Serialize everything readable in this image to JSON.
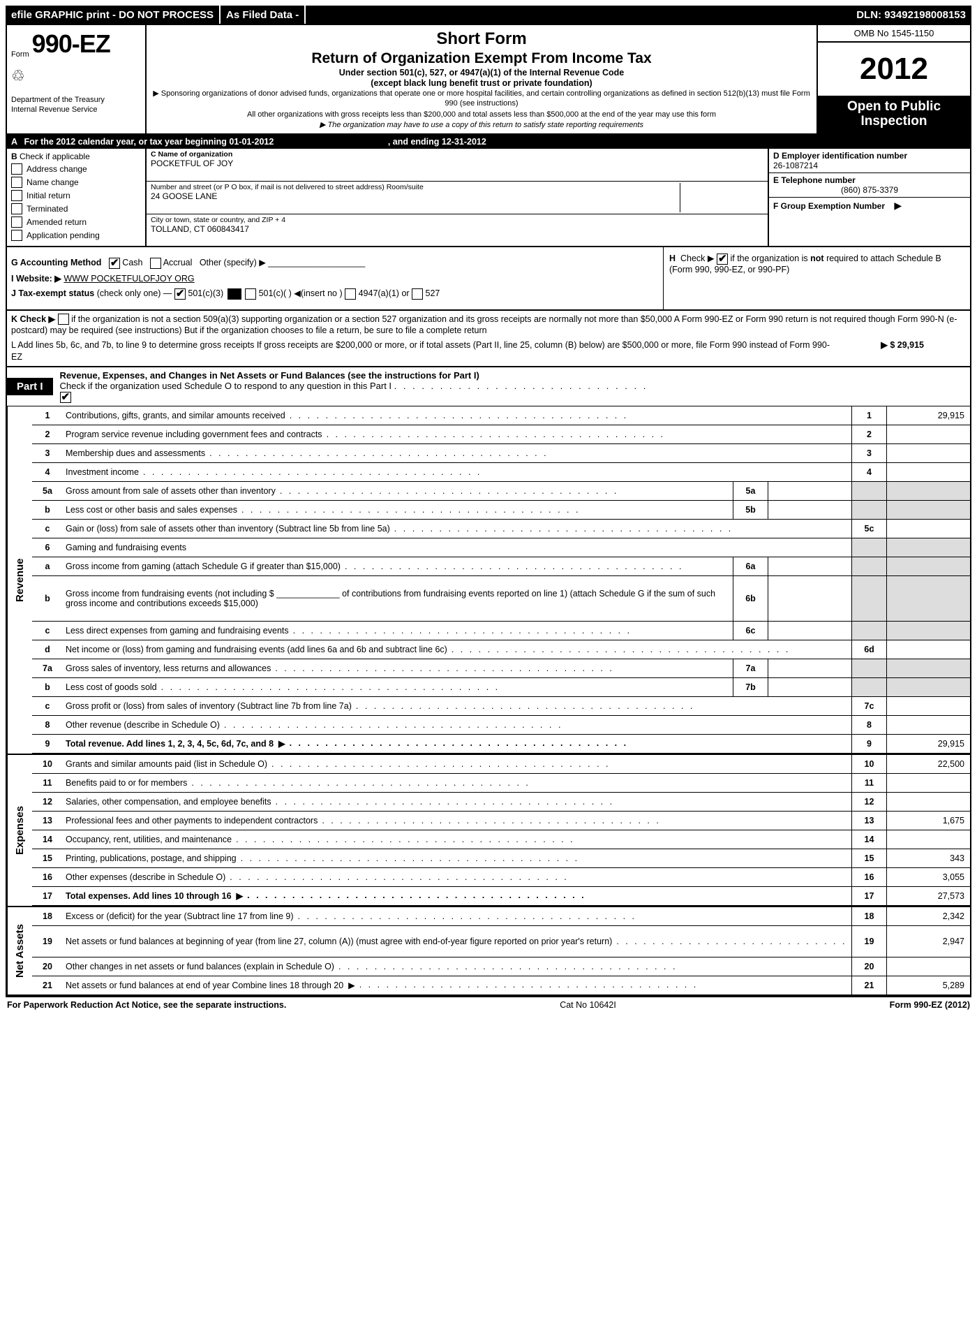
{
  "topbar": {
    "efile": "efile GRAPHIC print - DO NOT PROCESS",
    "asfiled": "As Filed Data -",
    "dln": "DLN: 93492198008153"
  },
  "header": {
    "form_prefix": "Form",
    "form_number": "990-EZ",
    "dept1": "Department of the Treasury",
    "dept2": "Internal Revenue Service",
    "short_form": "Short Form",
    "title": "Return of Organization Exempt From Income Tax",
    "sub1": "Under section 501(c), 527, or 4947(a)(1) of the Internal Revenue Code",
    "sub2": "(except black lung benefit trust or private foundation)",
    "sm1": "▶ Sponsoring organizations of donor advised funds, organizations that operate one or more hospital facilities, and certain controlling organizations as defined in section 512(b)(13) must file Form 990 (see instructions)",
    "sm2": "All other organizations with gross receipts less than $200,000 and total assets less than $500,000 at the end of the year may use this form",
    "sm3": "▶ The organization may have to use a copy of this return to satisfy state reporting requirements",
    "omb": "OMB No  1545-1150",
    "year": "2012",
    "open": "Open to Public Inspection"
  },
  "rowA": {
    "label": "A",
    "text": "For the 2012 calendar year, or tax year beginning 01-01-2012",
    "ending": ", and ending 12-31-2012"
  },
  "B": {
    "header": "Check if applicable",
    "items": [
      "Address change",
      "Name change",
      "Initial return",
      "Terminated",
      "Amended return",
      "Application pending"
    ]
  },
  "C": {
    "name_lbl": "C Name of organization",
    "name": "POCKETFUL OF JOY",
    "addr_lbl": "Number and street (or P O box, if mail is not delivered to street address) Room/suite",
    "addr": "24 GOOSE LANE",
    "city_lbl": "City or town, state or country, and ZIP + 4",
    "city": "TOLLAND, CT  060843417"
  },
  "D": {
    "lbl": "D Employer identification number",
    "val": "26-1087214"
  },
  "E": {
    "lbl": "E Telephone number",
    "val": "(860) 875-3379"
  },
  "F": {
    "lbl": "F Group Exemption Number",
    "arrow": "▶"
  },
  "G": {
    "label": "G Accounting Method",
    "cash": "Cash",
    "accrual": "Accrual",
    "other": "Other (specify) ▶"
  },
  "H": {
    "text1": "Check ▶",
    "text2": "if the organization is",
    "not": "not",
    "text3": "required to attach Schedule B (Form 990, 990-EZ, or 990-PF)"
  },
  "I": {
    "label": "I Website: ▶",
    "val": "WWW POCKETFULOFJOY ORG"
  },
  "J": {
    "label": "J Tax-exempt status",
    "text": "(check only one) —",
    "opts": [
      "501(c)(3)",
      "501(c)(  ) ◀(insert no )",
      "4947(a)(1) or",
      "527"
    ]
  },
  "K": {
    "label": "K Check ▶",
    "text": "if the organization is not a section 509(a)(3) supporting organization or a section 527 organization and its gross receipts are normally not more than $50,000  A Form 990-EZ or Form 990 return is not required though Form 990-N (e-postcard) may be required (see instructions)  But if the organization chooses to file a return, be sure to file a complete return"
  },
  "L": {
    "text": "L Add lines 5b, 6c, and 7b, to line 9 to determine gross receipts  If gross receipts are $200,000 or more, or if total assets (Part II, line 25, column (B) below) are $500,000 or more, file Form 990 instead of Form 990-EZ",
    "amount": "▶ $ 29,915"
  },
  "part1": {
    "badge": "Part I",
    "title": "Revenue, Expenses, and Changes in Net Assets or Fund Balances (see the instructions for Part I)",
    "sub": "Check if the organization used Schedule O to respond to any question in this Part I"
  },
  "sections": {
    "revenue": "Revenue",
    "expenses": "Expenses",
    "netassets": "Net Assets"
  },
  "lines": {
    "1": {
      "n": "1",
      "d": "Contributions, gifts, grants, and similar amounts received",
      "rn": "1",
      "rv": "29,915"
    },
    "2": {
      "n": "2",
      "d": "Program service revenue including government fees and contracts",
      "rn": "2",
      "rv": ""
    },
    "3": {
      "n": "3",
      "d": "Membership dues and assessments",
      "rn": "3",
      "rv": ""
    },
    "4": {
      "n": "4",
      "d": "Investment income",
      "rn": "4",
      "rv": ""
    },
    "5a": {
      "n": "5a",
      "d": "Gross amount from sale of assets other than inventory",
      "in": "5a"
    },
    "5b": {
      "n": "b",
      "d": "Less  cost or other basis and sales expenses",
      "in": "5b"
    },
    "5c": {
      "n": "c",
      "d": "Gain or (loss) from sale of assets other than inventory (Subtract line 5b from line 5a)",
      "rn": "5c",
      "rv": ""
    },
    "6": {
      "n": "6",
      "d": "Gaming and fundraising events"
    },
    "6a": {
      "n": "a",
      "d": "Gross income from gaming (attach Schedule G if greater than $15,000)",
      "in": "6a"
    },
    "6b": {
      "n": "b",
      "d": "Gross income from fundraising events (not including $ _____________ of contributions from fundraising events reported on line 1) (attach Schedule G if the sum of such gross income and contributions exceeds $15,000)",
      "in": "6b"
    },
    "6c": {
      "n": "c",
      "d": "Less  direct expenses from gaming and fundraising events",
      "in": "6c"
    },
    "6d": {
      "n": "d",
      "d": "Net income or (loss) from gaming and fundraising events (add lines 6a and 6b and subtract line 6c)",
      "rn": "6d",
      "rv": ""
    },
    "7a": {
      "n": "7a",
      "d": "Gross sales of inventory, less returns and allowances",
      "in": "7a"
    },
    "7b": {
      "n": "b",
      "d": "Less  cost of goods sold",
      "in": "7b"
    },
    "7c": {
      "n": "c",
      "d": "Gross profit or (loss) from sales of inventory (Subtract line 7b from line 7a)",
      "rn": "7c",
      "rv": ""
    },
    "8": {
      "n": "8",
      "d": "Other revenue (describe in Schedule O)",
      "rn": "8",
      "rv": ""
    },
    "9": {
      "n": "9",
      "d": "Total revenue. Add lines 1, 2, 3, 4, 5c, 6d, 7c, and 8",
      "rn": "9",
      "rv": "29,915",
      "bold": true,
      "arrow": true
    },
    "10": {
      "n": "10",
      "d": "Grants and similar amounts paid (list in Schedule O)",
      "rn": "10",
      "rv": "22,500"
    },
    "11": {
      "n": "11",
      "d": "Benefits paid to or for members",
      "rn": "11",
      "rv": ""
    },
    "12": {
      "n": "12",
      "d": "Salaries, other compensation, and employee benefits",
      "rn": "12",
      "rv": ""
    },
    "13": {
      "n": "13",
      "d": "Professional fees and other payments to independent contractors",
      "rn": "13",
      "rv": "1,675"
    },
    "14": {
      "n": "14",
      "d": "Occupancy, rent, utilities, and maintenance",
      "rn": "14",
      "rv": ""
    },
    "15": {
      "n": "15",
      "d": "Printing, publications, postage, and shipping",
      "rn": "15",
      "rv": "343"
    },
    "16": {
      "n": "16",
      "d": "Other expenses (describe in Schedule O)",
      "rn": "16",
      "rv": "3,055"
    },
    "17": {
      "n": "17",
      "d": "Total expenses. Add lines 10 through 16",
      "rn": "17",
      "rv": "27,573",
      "bold": true,
      "arrow": true
    },
    "18": {
      "n": "18",
      "d": "Excess or (deficit) for the year (Subtract line 17 from line 9)",
      "rn": "18",
      "rv": "2,342"
    },
    "19": {
      "n": "19",
      "d": "Net assets or fund balances at beginning of year (from line 27, column (A)) (must agree with end-of-year figure reported on prior year's return)",
      "rn": "19",
      "rv": "2,947"
    },
    "20": {
      "n": "20",
      "d": "Other changes in net assets or fund balances (explain in Schedule O)",
      "rn": "20",
      "rv": ""
    },
    "21": {
      "n": "21",
      "d": "Net assets or fund balances at end of year  Combine lines 18 through 20",
      "rn": "21",
      "rv": "5,289",
      "arrow": true
    }
  },
  "footer": {
    "left": "For Paperwork Reduction Act Notice, see the separate instructions.",
    "mid": "Cat No  10642I",
    "right": "Form 990-EZ (2012)"
  }
}
